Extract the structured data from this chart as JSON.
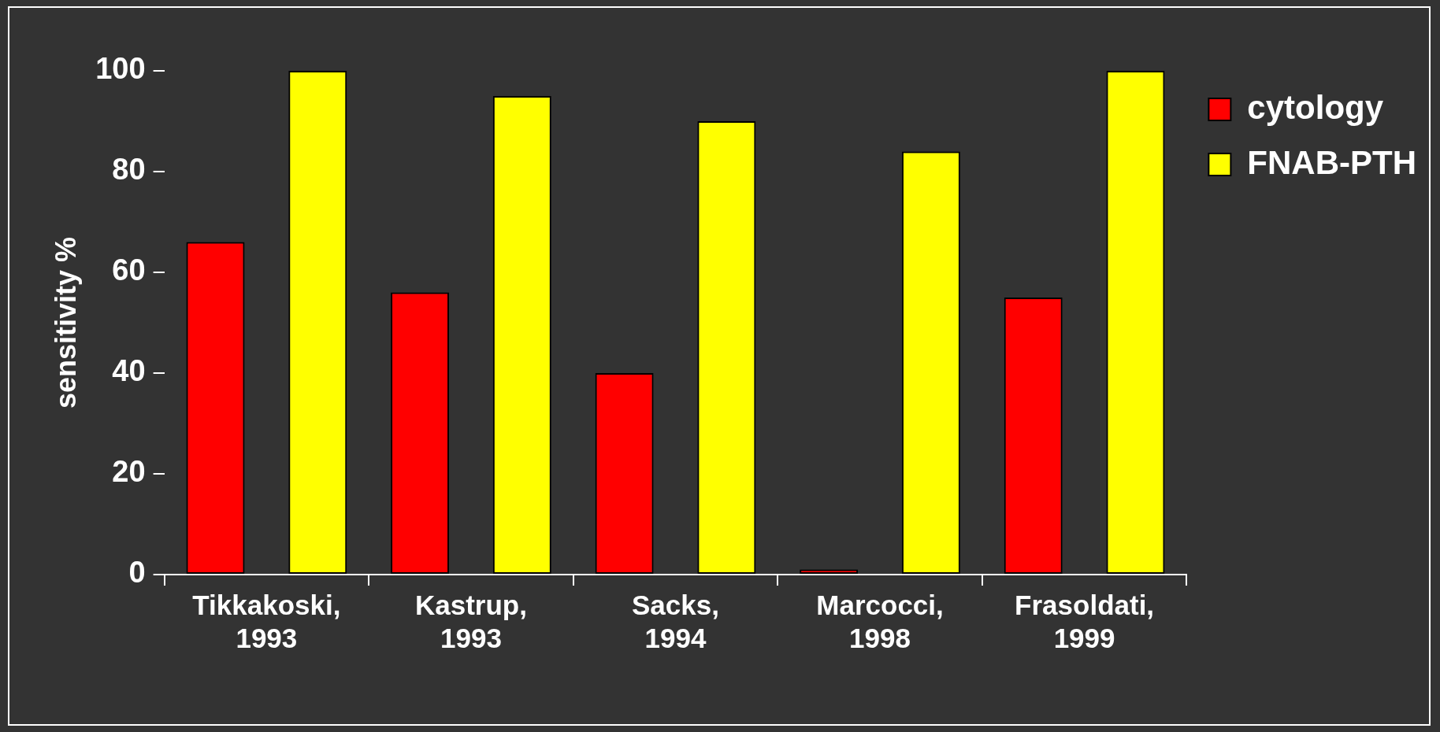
{
  "chart_data": {
    "type": "bar",
    "ylabel": "sensitivity %",
    "categories": [
      "Tikkakoski, 1993",
      "Kastrup, 1993",
      "Sacks, 1994",
      "Marcocci, 1998",
      "Frasoldati, 1999"
    ],
    "series": [
      {
        "name": "cytology",
        "color": "#ff0000",
        "values": [
          66,
          56,
          40,
          1,
          55
        ]
      },
      {
        "name": "FNAB-PTH",
        "color": "#ffff00",
        "values": [
          100,
          95,
          90,
          84,
          100
        ]
      }
    ],
    "ylim": [
      0,
      100
    ],
    "yticks": [
      0,
      20,
      40,
      60,
      80,
      100
    ],
    "grid": false,
    "legend": "top right"
  }
}
